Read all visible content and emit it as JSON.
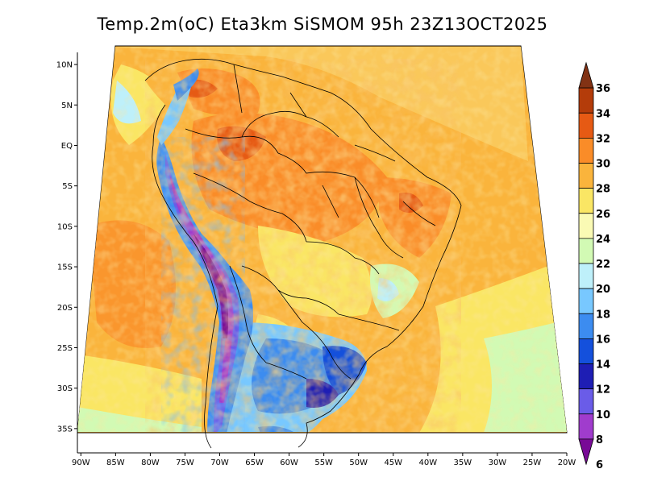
{
  "title": "Temp.2m(oC) Eta3km SiSMOM 95h 23Z13OCT2025",
  "chart_data": {
    "type": "heatmap",
    "title": "Temp.2m(oC) Eta3km SiSMOM 95h 23Z13OCT2025",
    "variable": "Temp.2m",
    "units": "oC",
    "x_ticks": [
      {
        "lon": -90,
        "label": "90W"
      },
      {
        "lon": -85,
        "label": "85W"
      },
      {
        "lon": -80,
        "label": "80W"
      },
      {
        "lon": -75,
        "label": "75W"
      },
      {
        "lon": -70,
        "label": "70W"
      },
      {
        "lon": -65,
        "label": "65W"
      },
      {
        "lon": -60,
        "label": "60W"
      },
      {
        "lon": -55,
        "label": "55W"
      },
      {
        "lon": -50,
        "label": "50W"
      },
      {
        "lon": -45,
        "label": "45W"
      },
      {
        "lon": -40,
        "label": "40W"
      },
      {
        "lon": -35,
        "label": "35W"
      },
      {
        "lon": -30,
        "label": "30W"
      },
      {
        "lon": -25,
        "label": "25W"
      },
      {
        "lon": -20,
        "label": "20W"
      }
    ],
    "y_ticks": [
      {
        "lat": 10,
        "label": "10N"
      },
      {
        "lat": 5,
        "label": "5N"
      },
      {
        "lat": 0,
        "label": "EQ"
      },
      {
        "lat": -5,
        "label": "5S"
      },
      {
        "lat": -10,
        "label": "10S"
      },
      {
        "lat": -15,
        "label": "15S"
      },
      {
        "lat": -20,
        "label": "20S"
      },
      {
        "lat": -25,
        "label": "25S"
      },
      {
        "lat": -30,
        "label": "30S"
      },
      {
        "lat": -35,
        "label": "35S"
      }
    ],
    "xlim": [
      -90.5,
      -20
    ],
    "ylim": [
      -38,
      11.5
    ],
    "colorbar": {
      "orientation": "vertical",
      "placement": "right",
      "levels": [
        "6",
        "8",
        "10",
        "12",
        "14",
        "16",
        "18",
        "20",
        "22",
        "24",
        "26",
        "28",
        "30",
        "32",
        "34",
        "36"
      ],
      "colors": [
        "#780a96",
        "#a03ccd",
        "#6a5ce8",
        "#1e1eb4",
        "#1450dc",
        "#3c8cf0",
        "#78c8ff",
        "#bef0fa",
        "#d2fab4",
        "#fafab4",
        "#fae664",
        "#fab43c",
        "#fa8c28",
        "#e65a14",
        "#b43c0a",
        "#823214"
      ]
    }
  }
}
